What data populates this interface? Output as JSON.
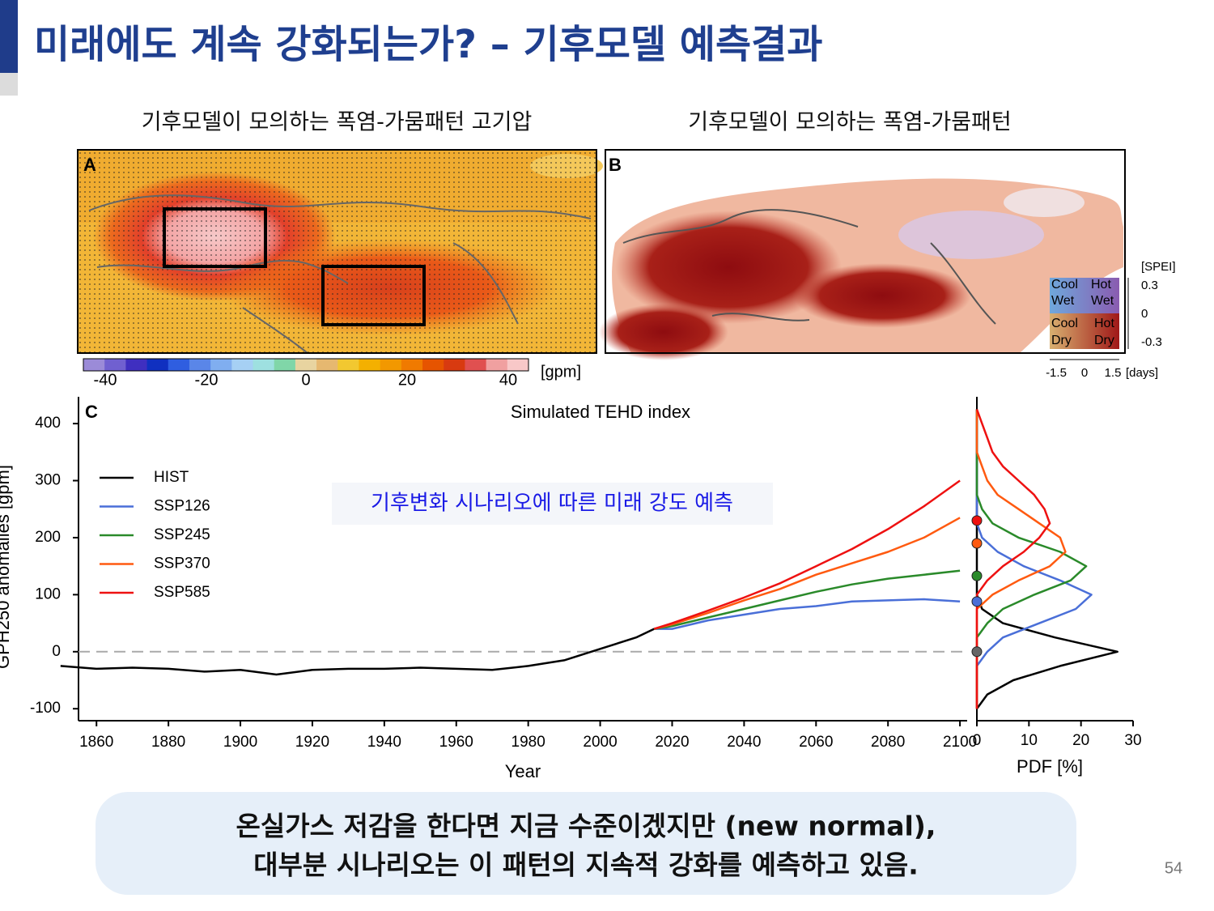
{
  "header": {
    "title": "미래에도 계속 강화되는가? – 기후모델 예측결과"
  },
  "panels": [
    {
      "title": "기후모델이 모의하는 폭염-가뭄패턴 고기압",
      "label": "A",
      "colorbar": {
        "ticks": [
          "-40",
          "-20",
          "0",
          "20",
          "40"
        ],
        "unit": "[gpm]"
      }
    },
    {
      "title": "기후모델이 모의하는 폭염-가뭄패턴",
      "label": "B",
      "legend": {
        "quadrants": [
          [
            "Cool",
            "Wet"
          ],
          [
            "Hot",
            "Wet"
          ],
          [
            "Cool",
            "Dry"
          ],
          [
            "Hot",
            "Dry"
          ]
        ],
        "y_unit": "[SPEI]",
        "y_ticks": [
          "0.3",
          "0",
          "-0.3"
        ],
        "x_ticks": [
          "-1.5",
          "0",
          "1.5"
        ],
        "x_unit": "[days]"
      }
    }
  ],
  "chart_data": [
    {
      "type": "line",
      "label": "C",
      "title": "Simulated TEHD index",
      "x_label": "Year",
      "y_label": "GPH250 anomalies [gpm]",
      "annotation": "기후변화 시나리오에 따른 미래 강도 예측",
      "legend": "upper left",
      "x": [
        1850,
        1860,
        1870,
        1880,
        1890,
        1900,
        1910,
        1920,
        1930,
        1940,
        1950,
        1960,
        1970,
        1980,
        1990,
        2000,
        2010,
        2015,
        2020,
        2030,
        2040,
        2050,
        2060,
        2070,
        2080,
        2090,
        2100
      ],
      "series": [
        {
          "name": "HIST",
          "color": "#000000",
          "values": [
            -25,
            -30,
            -28,
            -30,
            -35,
            -32,
            -40,
            -32,
            -30,
            -30,
            -28,
            -30,
            -32,
            -25,
            -15,
            5,
            25,
            40,
            null,
            null,
            null,
            null,
            null,
            null,
            null,
            null,
            null
          ]
        },
        {
          "name": "SSP126",
          "color": "#4a6fd8",
          "values": [
            null,
            null,
            null,
            null,
            null,
            null,
            null,
            null,
            null,
            null,
            null,
            null,
            null,
            null,
            null,
            null,
            null,
            40,
            40,
            55,
            65,
            75,
            80,
            88,
            90,
            92,
            88
          ]
        },
        {
          "name": "SSP245",
          "color": "#2a8a2a",
          "values": [
            null,
            null,
            null,
            null,
            null,
            null,
            null,
            null,
            null,
            null,
            null,
            null,
            null,
            null,
            null,
            null,
            null,
            40,
            45,
            60,
            75,
            90,
            105,
            118,
            128,
            135,
            142
          ]
        },
        {
          "name": "SSP370",
          "color": "#ff5a10",
          "values": [
            null,
            null,
            null,
            null,
            null,
            null,
            null,
            null,
            null,
            null,
            null,
            null,
            null,
            null,
            null,
            null,
            null,
            40,
            48,
            68,
            90,
            110,
            135,
            155,
            175,
            200,
            235
          ]
        },
        {
          "name": "SSP585",
          "color": "#ee1111",
          "values": [
            null,
            null,
            null,
            null,
            null,
            null,
            null,
            null,
            null,
            null,
            null,
            null,
            null,
            null,
            null,
            null,
            null,
            40,
            50,
            72,
            95,
            120,
            150,
            180,
            215,
            255,
            300
          ]
        }
      ],
      "xlim": [
        1855,
        2102
      ],
      "xticks": [
        1860,
        1880,
        1900,
        1920,
        1940,
        1960,
        1980,
        2000,
        2020,
        2040,
        2060,
        2080,
        2100
      ],
      "ylim": [
        -121,
        447
      ],
      "yticks": [
        -100,
        0,
        100,
        200,
        300,
        400
      ]
    },
    {
      "type": "pdf",
      "x_label": "PDF [%]",
      "y": [
        -100,
        -75,
        -50,
        -25,
        0,
        25,
        50,
        75,
        100,
        125,
        150,
        175,
        200,
        225,
        250,
        275,
        300,
        325,
        350,
        375,
        400,
        425
      ],
      "series": [
        {
          "color": "#000000",
          "mean": 0,
          "values": [
            0,
            2,
            7,
            16,
            27,
            15,
            5,
            1,
            0,
            0,
            0,
            0,
            0,
            0,
            0,
            0,
            0,
            0,
            0,
            0,
            0,
            0
          ]
        },
        {
          "color": "#4a6fd8",
          "mean": 88,
          "values": [
            0,
            0,
            0,
            0,
            2,
            5,
            12,
            19,
            22,
            16,
            9,
            4,
            1,
            0,
            0,
            0,
            0,
            0,
            0,
            0,
            0,
            0
          ]
        },
        {
          "color": "#2a8a2a",
          "mean": 133,
          "values": [
            0,
            0,
            0,
            0,
            0,
            0,
            2,
            5,
            11,
            18,
            21,
            16,
            8,
            3,
            1,
            0,
            0,
            0,
            0,
            0,
            0,
            0
          ]
        },
        {
          "color": "#ff5a10",
          "mean": 190,
          "values": [
            0,
            0,
            0,
            0,
            0,
            0,
            0,
            0,
            3,
            8,
            14,
            17,
            16,
            12,
            8,
            4,
            2,
            1,
            0,
            0,
            0,
            0
          ]
        },
        {
          "color": "#ee1111",
          "mean": 230,
          "values": [
            0,
            0,
            0,
            0,
            0,
            0,
            0,
            0,
            0,
            2,
            5,
            9,
            12,
            14,
            13,
            11,
            8,
            5,
            3,
            2,
            1,
            0
          ]
        }
      ],
      "xlim": [
        0,
        30
      ],
      "xticks": [
        0,
        10,
        20,
        30
      ],
      "ylim": [
        -121,
        447
      ]
    }
  ],
  "footer": {
    "lines": [
      "온실가스 저감을 한다면 지금 수준이겠지만 (new normal),",
      "대부분 시나리오는 이 패턴의 지속적 강화를 예측하고 있음."
    ]
  },
  "page_number": "54"
}
